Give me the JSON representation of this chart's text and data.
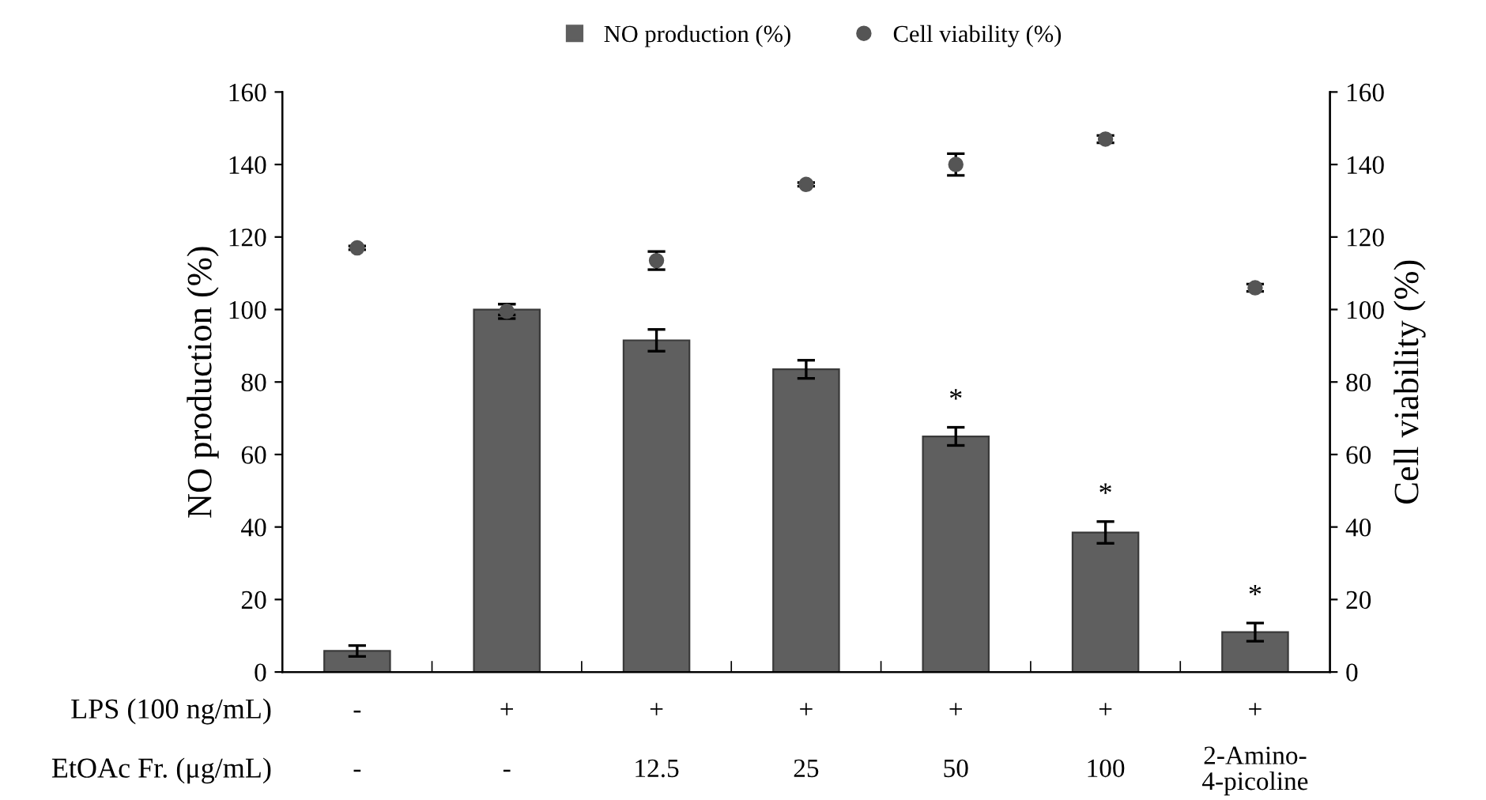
{
  "chart_data": {
    "type": "bar",
    "ylabel": "NO production (%)",
    "y2label": "Cell viability (%)",
    "categories": [
      "-\n-",
      "+\n-",
      "+\n12.5",
      "+\n25",
      "+\n50",
      "+\n100",
      "+\n2-Amino-\n4-picoline"
    ],
    "series": [
      {
        "name": "NO production (%)",
        "color": "#5f5f5f",
        "values": [
          5.8,
          100,
          91.5,
          83.5,
          65,
          38.5,
          11
        ],
        "errors": [
          1.5,
          1.5,
          3,
          2.5,
          2.5,
          3,
          2.5
        ]
      },
      {
        "name": "Cell viability (%)",
        "type": "scatter",
        "axis": "y2",
        "color": "#555555",
        "marker": "circle",
        "values": [
          117,
          99.5,
          113.5,
          134.5,
          140,
          147,
          106
        ],
        "errors": [
          0.5,
          2,
          2.5,
          0.5,
          3,
          1,
          1
        ]
      }
    ],
    "ylim": [
      0,
      160
    ],
    "yticks": [
      0,
      20,
      40,
      60,
      80,
      100,
      120,
      140,
      160
    ],
    "y2lim": [
      0,
      160
    ],
    "y2ticks": [
      0,
      20,
      40,
      60,
      80,
      100,
      120,
      140,
      160
    ],
    "legend": "top",
    "grid": false,
    "annotations": [
      "LPS (100 ng/mL)",
      "EtOAc Fr. (μg/mL)",
      "*",
      "*",
      "*"
    ]
  }
}
